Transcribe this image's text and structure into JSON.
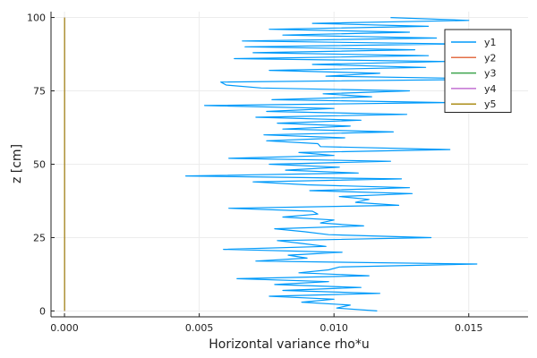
{
  "chart_data": {
    "type": "line",
    "title": "",
    "xlabel": "Horizontal variance rho*u",
    "ylabel": "z [cm]",
    "xlim": [
      -0.0005,
      0.0172
    ],
    "ylim": [
      -2,
      102
    ],
    "xticks": [
      0.0,
      0.005,
      0.01,
      0.015
    ],
    "xtick_labels": [
      "0.000",
      "0.005",
      "0.010",
      "0.015"
    ],
    "yticks": [
      0,
      25,
      50,
      75,
      100
    ],
    "ytick_labels": [
      "0",
      "25",
      "50",
      "75",
      "100"
    ],
    "grid": true,
    "legend_position": "top-right",
    "colors": {
      "y1": "#009AFA",
      "y2": "#E36F47",
      "y3": "#3EA44E",
      "y4": "#C371D2",
      "y5": "#AC8E18",
      "axis": "#222222",
      "grid": "#ececec"
    },
    "series": [
      {
        "name": "y1",
        "points": [
          [
            0.0116,
            0
          ],
          [
            0.0101,
            1
          ],
          [
            0.0106,
            2
          ],
          [
            0.0088,
            3
          ],
          [
            0.01,
            4
          ],
          [
            0.0076,
            5
          ],
          [
            0.0117,
            6
          ],
          [
            0.0081,
            7
          ],
          [
            0.011,
            8
          ],
          [
            0.0078,
            9
          ],
          [
            0.0098,
            10
          ],
          [
            0.0064,
            11
          ],
          [
            0.0113,
            12
          ],
          [
            0.0087,
            13
          ],
          [
            0.0098,
            14
          ],
          [
            0.0102,
            15
          ],
          [
            0.0153,
            16
          ],
          [
            0.0071,
            17
          ],
          [
            0.009,
            18
          ],
          [
            0.0083,
            19
          ],
          [
            0.0103,
            20
          ],
          [
            0.0059,
            21
          ],
          [
            0.0097,
            22
          ],
          [
            0.0088,
            23
          ],
          [
            0.0079,
            24
          ],
          [
            0.0136,
            25
          ],
          [
            0.0098,
            26
          ],
          [
            0.0089,
            27
          ],
          [
            0.0078,
            28
          ],
          [
            0.0111,
            29
          ],
          [
            0.0095,
            30
          ],
          [
            0.01,
            31
          ],
          [
            0.0081,
            32
          ],
          [
            0.0094,
            33
          ],
          [
            0.0092,
            34
          ],
          [
            0.0061,
            35
          ],
          [
            0.0124,
            36
          ],
          [
            0.0108,
            37
          ],
          [
            0.0113,
            38
          ],
          [
            0.0102,
            39
          ],
          [
            0.0129,
            40
          ],
          [
            0.0091,
            41
          ],
          [
            0.0128,
            42
          ],
          [
            0.009,
            43
          ],
          [
            0.007,
            44
          ],
          [
            0.0125,
            45
          ],
          [
            0.0045,
            46
          ],
          [
            0.0109,
            47
          ],
          [
            0.0082,
            48
          ],
          [
            0.0102,
            49
          ],
          [
            0.0076,
            50
          ],
          [
            0.0121,
            51
          ],
          [
            0.0061,
            52
          ],
          [
            0.01,
            53
          ],
          [
            0.0087,
            54
          ],
          [
            0.0143,
            55
          ],
          [
            0.0095,
            56
          ],
          [
            0.0094,
            57
          ],
          [
            0.0075,
            58
          ],
          [
            0.0104,
            59
          ],
          [
            0.0074,
            60
          ],
          [
            0.0122,
            61
          ],
          [
            0.0081,
            62
          ],
          [
            0.0106,
            63
          ],
          [
            0.0079,
            64
          ],
          [
            0.011,
            65
          ],
          [
            0.0071,
            66
          ],
          [
            0.0127,
            67
          ],
          [
            0.0075,
            68
          ],
          [
            0.01,
            69
          ],
          [
            0.0052,
            70
          ],
          [
            0.0142,
            71
          ],
          [
            0.0077,
            72
          ],
          [
            0.0114,
            73
          ],
          [
            0.0096,
            74
          ],
          [
            0.0128,
            75
          ],
          [
            0.0073,
            76
          ],
          [
            0.006,
            77
          ],
          [
            0.0058,
            78
          ],
          [
            0.0165,
            79
          ],
          [
            0.0097,
            80
          ],
          [
            0.0117,
            81
          ],
          [
            0.0076,
            82
          ],
          [
            0.0134,
            83
          ],
          [
            0.0092,
            84
          ],
          [
            0.0142,
            85
          ],
          [
            0.0063,
            86
          ],
          [
            0.0135,
            87
          ],
          [
            0.007,
            88
          ],
          [
            0.013,
            89
          ],
          [
            0.0067,
            90
          ],
          [
            0.0146,
            91
          ],
          [
            0.0066,
            92
          ],
          [
            0.0138,
            93
          ],
          [
            0.0081,
            94
          ],
          [
            0.0128,
            95
          ],
          [
            0.0076,
            96
          ],
          [
            0.0135,
            97
          ],
          [
            0.0092,
            98
          ],
          [
            0.015,
            99
          ],
          [
            0.0121,
            100
          ]
        ]
      },
      {
        "name": "y2",
        "points": [
          [
            0.0,
            0
          ],
          [
            0.0,
            100
          ]
        ]
      },
      {
        "name": "y3",
        "points": [
          [
            0.0,
            0
          ],
          [
            0.0,
            100
          ]
        ]
      },
      {
        "name": "y4",
        "points": [
          [
            0.0,
            0
          ],
          [
            0.0,
            100
          ]
        ]
      },
      {
        "name": "y5",
        "points": [
          [
            0.0,
            0
          ],
          [
            0.0,
            100
          ]
        ]
      }
    ]
  }
}
